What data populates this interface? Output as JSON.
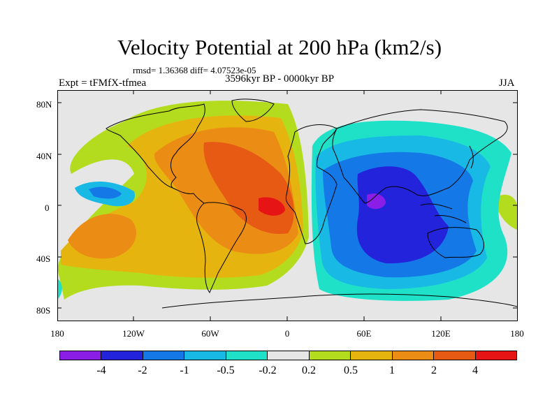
{
  "title": "Velocity Potential at 200 hPa (km2/s)",
  "stats": "rmsd= 1.36368 diff= 4.07523e-05",
  "period": "3596kyr BP - 0000kyr BP",
  "experiment": "Expt = tFMfX-tfmea",
  "season": "JJA",
  "axes": {
    "y_labels": [
      "80N",
      "40N",
      "0",
      "40S",
      "80S"
    ],
    "x_labels": [
      "180",
      "120W",
      "60W",
      "0",
      "60E",
      "120E",
      "180"
    ]
  },
  "colorbar": {
    "colors": [
      "#8a1ee6",
      "#2323dc",
      "#1478e6",
      "#19b9e6",
      "#1ee1c8",
      "#e6e6e6",
      "#b4dc1e",
      "#e6b40f",
      "#eb8c14",
      "#e65a14",
      "#e61414"
    ],
    "labels": [
      "-4",
      "-2",
      "-1",
      "-0.5",
      "-0.2",
      "0.2",
      "0.5",
      "1",
      "2",
      "4"
    ]
  }
}
